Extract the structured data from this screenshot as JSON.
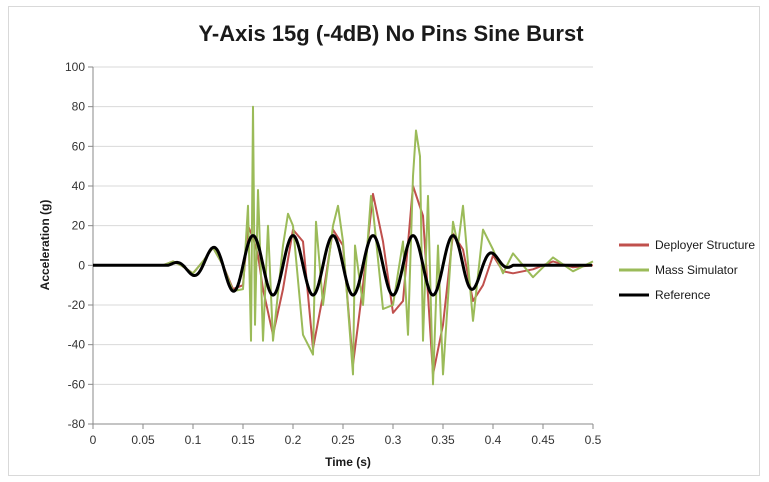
{
  "chart_data": {
    "type": "line",
    "title": "Y-Axis 15g (-4dB) No Pins Sine Burst",
    "xlabel": "Time (s)",
    "ylabel": "Acceleration (g)",
    "xlim": [
      0,
      0.5
    ],
    "ylim": [
      -80,
      100
    ],
    "x_ticks": [
      "0",
      "0.05",
      "0.1",
      "0.15",
      "0.2",
      "0.25",
      "0.3",
      "0.35",
      "0.4",
      "0.45",
      "0.5"
    ],
    "y_ticks": [
      "100",
      "80",
      "60",
      "40",
      "20",
      "0",
      "-20",
      "-40",
      "-60",
      "-80"
    ],
    "grid": "horizontal",
    "legend_position": "right",
    "series": [
      {
        "name": "Deployer Structure",
        "color": "#c0504d",
        "x": [
          0,
          0.07,
          0.08,
          0.088,
          0.1,
          0.11,
          0.12,
          0.13,
          0.14,
          0.15,
          0.155,
          0.16,
          0.165,
          0.17,
          0.18,
          0.19,
          0.2,
          0.21,
          0.22,
          0.23,
          0.24,
          0.25,
          0.26,
          0.27,
          0.28,
          0.29,
          0.3,
          0.31,
          0.32,
          0.33,
          0.34,
          0.35,
          0.36,
          0.37,
          0.38,
          0.39,
          0.4,
          0.41,
          0.42,
          0.44,
          0.46,
          0.48,
          0.5
        ],
        "y": [
          0,
          0,
          2,
          0,
          -4,
          2,
          9,
          0,
          -12,
          -10,
          20,
          14,
          5,
          -12,
          -35,
          -12,
          18,
          12,
          -42,
          -15,
          18,
          10,
          -50,
          -10,
          36,
          12,
          -24,
          -18,
          40,
          25,
          -55,
          -30,
          16,
          8,
          -18,
          -10,
          5,
          -3,
          -4,
          -2,
          2,
          -1,
          0
        ]
      },
      {
        "name": "Mass Simulator",
        "color": "#9bbb59",
        "x": [
          0,
          0.07,
          0.08,
          0.088,
          0.1,
          0.11,
          0.12,
          0.13,
          0.14,
          0.15,
          0.155,
          0.158,
          0.16,
          0.162,
          0.165,
          0.168,
          0.17,
          0.175,
          0.18,
          0.19,
          0.195,
          0.2,
          0.21,
          0.22,
          0.223,
          0.23,
          0.24,
          0.245,
          0.25,
          0.26,
          0.262,
          0.27,
          0.278,
          0.28,
          0.29,
          0.3,
          0.31,
          0.315,
          0.32,
          0.323,
          0.327,
          0.33,
          0.335,
          0.34,
          0.345,
          0.35,
          0.36,
          0.365,
          0.37,
          0.38,
          0.39,
          0.4,
          0.41,
          0.42,
          0.44,
          0.46,
          0.48,
          0.5
        ],
        "y": [
          0,
          0,
          2,
          0,
          -4,
          2,
          9,
          0,
          -13,
          -12,
          30,
          -38,
          80,
          -30,
          38,
          -5,
          -38,
          20,
          -38,
          10,
          26,
          20,
          -35,
          -45,
          22,
          -20,
          20,
          30,
          12,
          -55,
          10,
          -20,
          35,
          28,
          -22,
          -20,
          12,
          -35,
          45,
          68,
          55,
          -38,
          35,
          -60,
          10,
          -55,
          22,
          10,
          30,
          -28,
          18,
          8,
          -4,
          6,
          -6,
          4,
          -3,
          2
        ]
      },
      {
        "name": "Reference",
        "color": "#000000",
        "line_width": 3,
        "formula": "sine burst, 25 Hz, peak 15 g, ramped up 0.075-0.15 s and down 0.37-0.42 s"
      }
    ]
  }
}
